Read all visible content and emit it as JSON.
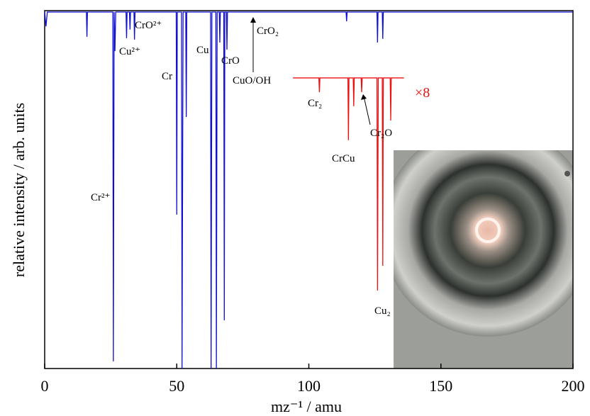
{
  "chart_data": {
    "type": "line",
    "xlabel": "mz⁻¹ / amu",
    "ylabel": "relative intensity / arb. units",
    "xlim": [
      0,
      200
    ],
    "xticks": [
      0,
      50,
      100,
      150,
      200
    ],
    "ylim": [
      0,
      100
    ],
    "series": [
      {
        "color": "#1010d0",
        "x": [
          0,
          0.5,
          1,
          15.8,
          16,
          16.2,
          25.8,
          26,
          26.3,
          26.6,
          26.9,
          30.8,
          31,
          31.2,
          32.1,
          32.3,
          32.5,
          33.8,
          34,
          34.2,
          49.8,
          50,
          50.2,
          51.8,
          52,
          52.4,
          53.4,
          53.6,
          53.8,
          62.8,
          63,
          63.3,
          64.8,
          65,
          65.3,
          66.1,
          66.3,
          66.5,
          67.8,
          68,
          68.2,
          68.8,
          69,
          69.2,
          114.1,
          114.3,
          114.5,
          125.8,
          126,
          126.2,
          127.8,
          128,
          128.2,
          200
        ],
        "values": [
          99.6,
          95.6,
          99.6,
          99.6,
          92.7,
          99.6,
          99.6,
          2,
          99.6,
          88.7,
          99.6,
          99.6,
          92.3,
          99.6,
          99.6,
          94.7,
          99.6,
          99.6,
          91.9,
          99.6,
          99.6,
          43,
          99.6,
          99.6,
          0,
          99.6,
          99.6,
          70.3,
          99.6,
          99.6,
          0,
          99.6,
          99.6,
          0,
          99.6,
          99.6,
          91.1,
          99.6,
          99.6,
          13.5,
          99.6,
          99.6,
          89.1,
          99.6,
          99.6,
          97,
          99.6,
          99.6,
          91.1,
          99.6,
          99.6,
          92.1,
          99.6,
          99.6
        ]
      },
      {
        "color": "#ee1111",
        "x": [
          94,
          103.8,
          104,
          104.2,
          114.8,
          115,
          115.2,
          116.8,
          117,
          117.2,
          119.8,
          120,
          120.2,
          125.8,
          126,
          126.3,
          127.8,
          128,
          128.2,
          130.8,
          131,
          131.2,
          136
        ],
        "values": [
          81.2,
          81.2,
          77.2,
          81.2,
          81.2,
          63.8,
          81.2,
          81.2,
          73.3,
          81.2,
          81.2,
          77.2,
          81.2,
          81.2,
          21.8,
          81.2,
          81.2,
          28.7,
          81.2,
          81.2,
          69.3,
          81.2,
          81.2
        ]
      }
    ],
    "annotations": [
      "CrO²⁺",
      "Cu²⁺",
      "Cr",
      "Cu",
      "CrO",
      "CrO₂",
      "CuO/OH",
      "Cr₂",
      "Cr₂O",
      "CrCu",
      "Cr²⁺",
      "Cu₂",
      "×8"
    ]
  }
}
